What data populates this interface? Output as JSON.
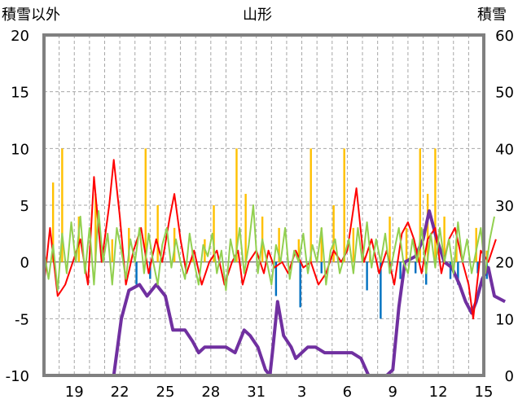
{
  "header": {
    "left_label": "積雪以外",
    "title": "山形",
    "right_label": "積雪"
  },
  "colors": {
    "precip_bars": "#FFC000",
    "temp_anomaly_line": "#FF0000",
    "sunshine_line": "#92D050",
    "negative_bars": "#0070C0",
    "snow_depth_line": "#7030A0",
    "frame": "#808080"
  },
  "chart_data": {
    "type": "line",
    "title": "山形",
    "y_left": {
      "label": "積雪以外",
      "ylim": [
        -10,
        20
      ],
      "ticks": [
        -10,
        -5,
        0,
        5,
        10,
        15,
        20
      ]
    },
    "y_right": {
      "label": "積雪",
      "ylim": [
        0,
        60
      ],
      "ticks": [
        0,
        10,
        20,
        30,
        40,
        50,
        60
      ]
    },
    "x": {
      "range_days": [
        17,
        46
      ],
      "tick_days": [
        19,
        22,
        25,
        28,
        31,
        34,
        37,
        40,
        43,
        46
      ],
      "tick_labels": [
        "19",
        "22",
        "25",
        "28",
        "31",
        "3",
        "6",
        "9",
        "12",
        "15"
      ]
    },
    "grid": true,
    "series": [
      {
        "axis": "right",
        "color": "#7030A0",
        "points": [
          [
            17,
            0
          ],
          [
            21.6,
            0
          ],
          [
            22.1,
            10
          ],
          [
            22.6,
            15
          ],
          [
            23.3,
            16
          ],
          [
            23.8,
            14
          ],
          [
            24.4,
            16
          ],
          [
            25.0,
            14
          ],
          [
            25.5,
            8
          ],
          [
            26.3,
            8
          ],
          [
            26.8,
            6
          ],
          [
            27.2,
            4
          ],
          [
            27.6,
            5
          ],
          [
            28.3,
            5
          ],
          [
            29.0,
            5
          ],
          [
            29.6,
            4
          ],
          [
            30.2,
            8
          ],
          [
            30.6,
            7
          ],
          [
            31.1,
            5
          ],
          [
            31.6,
            1
          ],
          [
            31.9,
            0
          ],
          [
            32.1,
            5
          ],
          [
            32.4,
            13
          ],
          [
            32.8,
            7
          ],
          [
            33.3,
            5
          ],
          [
            33.6,
            3
          ],
          [
            34.0,
            4
          ],
          [
            34.4,
            5
          ],
          [
            34.9,
            5
          ],
          [
            35.5,
            4
          ],
          [
            36.4,
            4
          ],
          [
            37.3,
            4
          ],
          [
            37.9,
            3
          ],
          [
            38.4,
            0
          ],
          [
            39.6,
            0
          ],
          [
            40.0,
            1
          ],
          [
            40.4,
            12
          ],
          [
            40.8,
            20
          ],
          [
            41.5,
            21
          ],
          [
            42.0,
            24
          ],
          [
            42.4,
            29
          ],
          [
            42.9,
            24
          ],
          [
            43.4,
            20
          ],
          [
            43.9,
            19
          ],
          [
            44.4,
            16
          ],
          [
            44.8,
            13
          ],
          [
            45.2,
            11
          ],
          [
            45.5,
            13
          ],
          [
            45.9,
            17
          ],
          [
            46.3,
            19
          ],
          [
            46.7,
            14
          ],
          [
            47.4,
            13
          ]
        ]
      },
      {
        "axis": "left",
        "color": "#FF0000",
        "points": [
          [
            17.0,
            -2
          ],
          [
            17.4,
            3
          ],
          [
            17.9,
            -3
          ],
          [
            18.4,
            -2
          ],
          [
            18.9,
            0
          ],
          [
            19.4,
            2
          ],
          [
            19.9,
            -2
          ],
          [
            20.3,
            7.5
          ],
          [
            20.8,
            0
          ],
          [
            21.3,
            5
          ],
          [
            21.6,
            9
          ],
          [
            22.0,
            4
          ],
          [
            22.4,
            -2
          ],
          [
            22.9,
            1
          ],
          [
            23.4,
            3
          ],
          [
            23.9,
            -1
          ],
          [
            24.4,
            2
          ],
          [
            24.8,
            0
          ],
          [
            25.3,
            4
          ],
          [
            25.6,
            6
          ],
          [
            26.0,
            2
          ],
          [
            26.4,
            -1
          ],
          [
            26.9,
            1
          ],
          [
            27.4,
            -2
          ],
          [
            27.9,
            0
          ],
          [
            28.4,
            1
          ],
          [
            28.9,
            -2
          ],
          [
            29.4,
            0
          ],
          [
            29.8,
            1
          ],
          [
            30.1,
            -2
          ],
          [
            30.5,
            0
          ],
          [
            31.0,
            1
          ],
          [
            31.5,
            -1
          ],
          [
            31.8,
            1
          ],
          [
            32.2,
            -0.5
          ],
          [
            32.7,
            0
          ],
          [
            33.1,
            -1
          ],
          [
            33.6,
            1
          ],
          [
            34.1,
            -0.5
          ],
          [
            34.6,
            0
          ],
          [
            35.1,
            -2
          ],
          [
            35.6,
            -1
          ],
          [
            36.1,
            1
          ],
          [
            36.6,
            0
          ],
          [
            37.0,
            1
          ],
          [
            37.6,
            6.5
          ],
          [
            38.1,
            0
          ],
          [
            38.6,
            2
          ],
          [
            39.1,
            -1
          ],
          [
            39.6,
            1
          ],
          [
            40.1,
            -2
          ],
          [
            40.6,
            2.5
          ],
          [
            41.0,
            3.5
          ],
          [
            41.4,
            2
          ],
          [
            41.9,
            -1
          ],
          [
            42.3,
            2
          ],
          [
            42.8,
            3
          ],
          [
            43.2,
            -1
          ],
          [
            43.7,
            2
          ],
          [
            44.1,
            3
          ],
          [
            44.6,
            0
          ],
          [
            45.0,
            -2
          ],
          [
            45.3,
            -5
          ],
          [
            45.8,
            1
          ],
          [
            46.3,
            0
          ],
          [
            46.8,
            2
          ]
        ]
      },
      {
        "axis": "left",
        "color": "#92D050",
        "points": [
          [
            17.0,
            1
          ],
          [
            17.3,
            -1.5
          ],
          [
            17.6,
            1.5
          ],
          [
            17.9,
            -2.5
          ],
          [
            18.2,
            2.5
          ],
          [
            18.5,
            -1
          ],
          [
            18.8,
            3.5
          ],
          [
            19.1,
            0
          ],
          [
            19.4,
            4
          ],
          [
            19.7,
            -1
          ],
          [
            20.0,
            3
          ],
          [
            20.3,
            -2
          ],
          [
            20.6,
            4.5
          ],
          [
            20.9,
            0
          ],
          [
            21.2,
            2.5
          ],
          [
            21.5,
            -2
          ],
          [
            21.8,
            3
          ],
          [
            22.1,
            1
          ],
          [
            22.4,
            -1.5
          ],
          [
            22.7,
            2
          ],
          [
            23.0,
            0
          ],
          [
            23.3,
            3
          ],
          [
            23.6,
            -1
          ],
          [
            23.9,
            2.5
          ],
          [
            24.2,
            0
          ],
          [
            24.5,
            -2
          ],
          [
            24.8,
            1.5
          ],
          [
            25.1,
            3
          ],
          [
            25.4,
            -0.5
          ],
          [
            25.7,
            2
          ],
          [
            26.0,
            0
          ],
          [
            26.3,
            -1.5
          ],
          [
            26.6,
            2.5
          ],
          [
            26.9,
            0
          ],
          [
            27.2,
            -2
          ],
          [
            27.5,
            1.5
          ],
          [
            27.8,
            0.5
          ],
          [
            28.1,
            2.5
          ],
          [
            28.4,
            -1
          ],
          [
            28.7,
            1
          ],
          [
            29.0,
            -2.5
          ],
          [
            29.3,
            2
          ],
          [
            29.6,
            0
          ],
          [
            29.9,
            3
          ],
          [
            30.2,
            -1
          ],
          [
            30.5,
            1.5
          ],
          [
            30.8,
            5
          ],
          [
            31.1,
            -1
          ],
          [
            31.4,
            2
          ],
          [
            31.7,
            0
          ],
          [
            32.0,
            -2
          ],
          [
            32.3,
            1.5
          ],
          [
            32.6,
            0
          ],
          [
            32.9,
            3
          ],
          [
            33.2,
            -1.5
          ],
          [
            33.5,
            1
          ],
          [
            33.8,
            0
          ],
          [
            34.1,
            2.5
          ],
          [
            34.4,
            -1
          ],
          [
            34.7,
            1.5
          ],
          [
            35.0,
            0
          ],
          [
            35.3,
            3
          ],
          [
            35.6,
            -2
          ],
          [
            35.9,
            1
          ],
          [
            36.2,
            2
          ],
          [
            36.5,
            -1
          ],
          [
            36.8,
            0.5
          ],
          [
            37.1,
            2
          ],
          [
            37.4,
            -1
          ],
          [
            37.7,
            3
          ],
          [
            38.0,
            0
          ],
          [
            38.3,
            3.5
          ],
          [
            38.6,
            -0.5
          ],
          [
            38.9,
            2
          ],
          [
            39.2,
            0
          ],
          [
            39.5,
            2.5
          ],
          [
            39.8,
            -1
          ],
          [
            40.1,
            1
          ],
          [
            40.4,
            3
          ],
          [
            40.7,
            0
          ],
          [
            41.0,
            -1
          ],
          [
            41.3,
            2
          ],
          [
            41.6,
            0
          ],
          [
            41.9,
            3
          ],
          [
            42.2,
            -1
          ],
          [
            42.5,
            2.5
          ],
          [
            42.8,
            -0.5
          ],
          [
            43.1,
            3
          ],
          [
            43.4,
            0
          ],
          [
            43.7,
            2
          ],
          [
            44.0,
            -1
          ],
          [
            44.3,
            3.5
          ],
          [
            44.6,
            0
          ],
          [
            44.9,
            2
          ],
          [
            45.2,
            -1
          ],
          [
            45.5,
            1
          ],
          [
            45.8,
            3
          ],
          [
            46.1,
            -1
          ],
          [
            46.4,
            2
          ],
          [
            46.7,
            4
          ]
        ]
      }
    ],
    "bars": [
      {
        "axis": "left",
        "color": "#FFC000",
        "values": [
          [
            17.6,
            7
          ],
          [
            18.2,
            10
          ],
          [
            19.3,
            4
          ],
          [
            20.4,
            6
          ],
          [
            21.5,
            2
          ],
          [
            22.6,
            3
          ],
          [
            23.7,
            10
          ],
          [
            24.5,
            5
          ],
          [
            25.6,
            3
          ],
          [
            26.8,
            1
          ],
          [
            27.6,
            2
          ],
          [
            28.2,
            5
          ],
          [
            29.7,
            10
          ],
          [
            30.3,
            6
          ],
          [
            31.4,
            4
          ],
          [
            32.5,
            3
          ],
          [
            33.8,
            2
          ],
          [
            34.6,
            10
          ],
          [
            35.3,
            3
          ],
          [
            36.1,
            5
          ],
          [
            36.8,
            10
          ],
          [
            37.4,
            3
          ],
          [
            38.5,
            1
          ],
          [
            39.8,
            4
          ],
          [
            40.9,
            3
          ],
          [
            41.8,
            10
          ],
          [
            42.3,
            6
          ],
          [
            42.8,
            10
          ],
          [
            43.4,
            4
          ],
          [
            44.2,
            2
          ],
          [
            45.5,
            3
          ],
          [
            46.2,
            1
          ]
        ]
      },
      {
        "axis": "left",
        "color": "#0070C0",
        "values": [
          [
            23.1,
            -2
          ],
          [
            24.0,
            -1.5
          ],
          [
            32.3,
            -3
          ],
          [
            33.9,
            -4
          ],
          [
            35.3,
            -1
          ],
          [
            38.3,
            -2.5
          ],
          [
            39.2,
            -5
          ],
          [
            39.8,
            -1
          ],
          [
            40.5,
            -1.5
          ],
          [
            41.5,
            -1
          ],
          [
            42.2,
            -2
          ],
          [
            43.8,
            -1.5
          ],
          [
            44.3,
            -2
          ],
          [
            45.6,
            -1
          ],
          [
            46.2,
            -1.5
          ]
        ]
      }
    ]
  }
}
